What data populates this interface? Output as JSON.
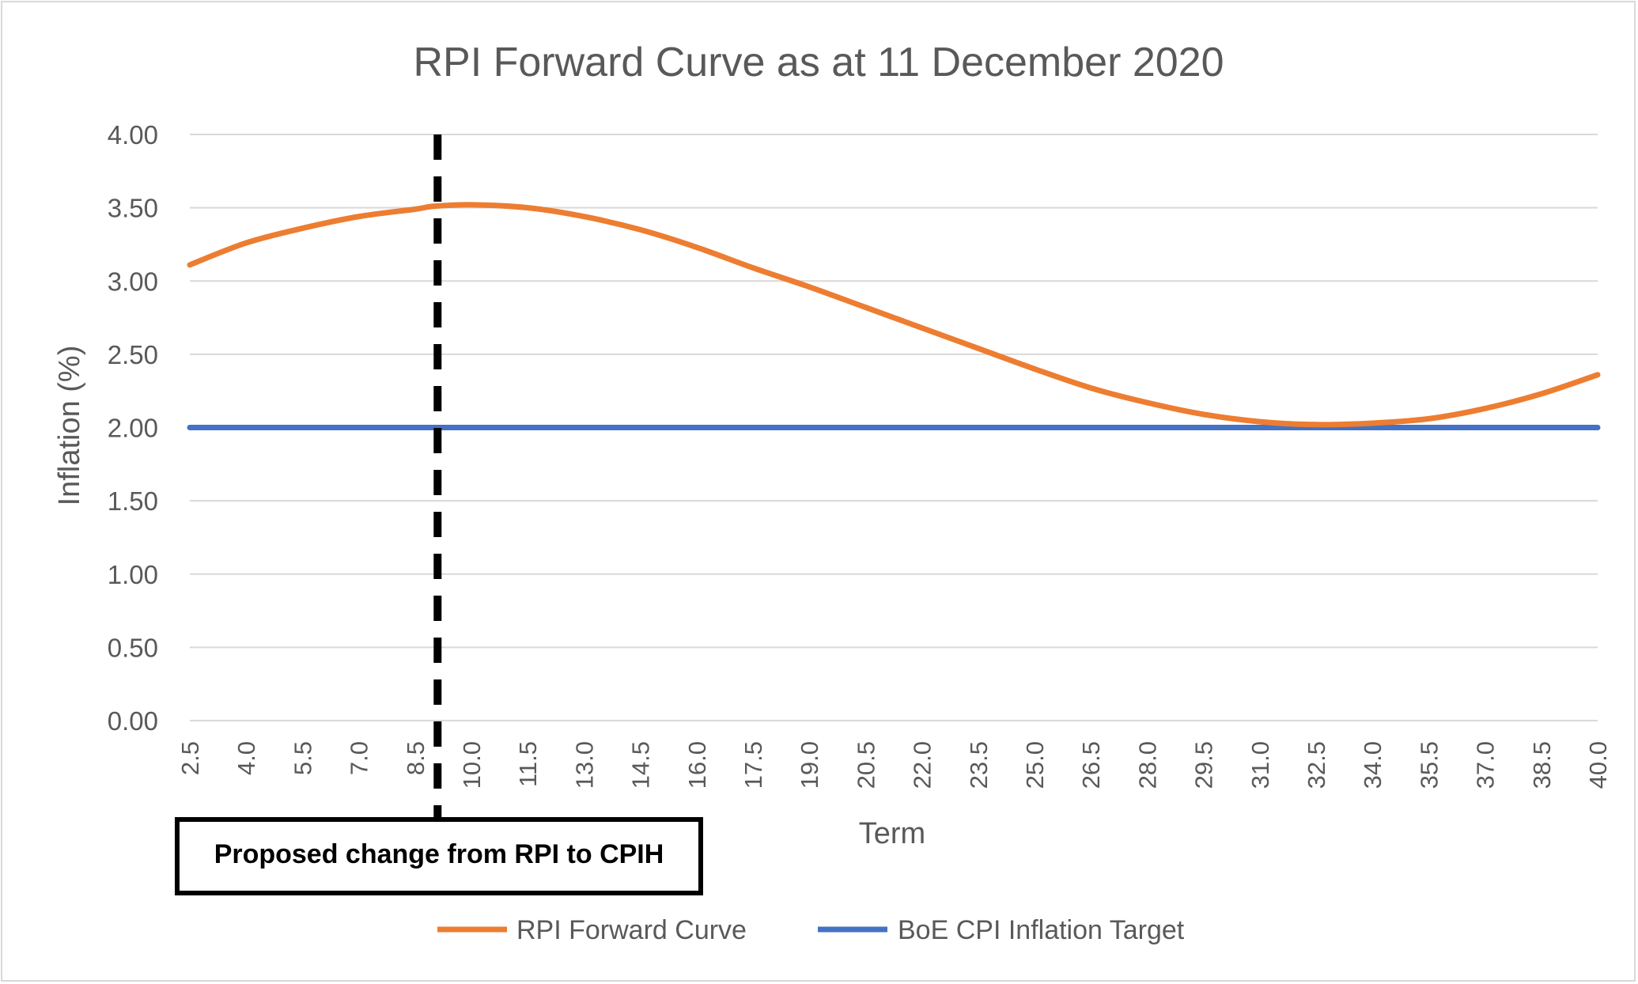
{
  "chart_data": {
    "type": "line",
    "title": "RPI Forward Curve as at 11 December 2020",
    "xlabel": "Term",
    "ylabel": "Inflation (%)",
    "ylim": [
      0,
      4
    ],
    "yticks": [
      "0.00",
      "0.50",
      "1.00",
      "1.50",
      "2.00",
      "2.50",
      "3.00",
      "3.50",
      "4.00"
    ],
    "xticks": [
      "2.5",
      "4.0",
      "5.5",
      "7.0",
      "8.5",
      "10.0",
      "11.5",
      "13.0",
      "14.5",
      "16.0",
      "17.5",
      "19.0",
      "20.5",
      "22.0",
      "23.5",
      "25.0",
      "26.5",
      "28.0",
      "29.5",
      "31.0",
      "32.5",
      "34.0",
      "35.5",
      "37.0",
      "38.5",
      "40.0"
    ],
    "xlim": [
      2.5,
      40.0
    ],
    "grid": true,
    "legend_position": "bottom",
    "series": [
      {
        "name": "RPI Forward Curve",
        "color": "#ed7d31",
        "x": [
          2.5,
          4.0,
          5.5,
          7.0,
          8.5,
          9.0,
          10.0,
          11.5,
          13.0,
          14.5,
          16.0,
          17.5,
          19.0,
          20.5,
          22.0,
          23.5,
          25.0,
          26.5,
          28.0,
          29.5,
          31.0,
          32.5,
          34.0,
          35.5,
          37.0,
          38.5,
          40.0
        ],
        "y": [
          3.11,
          3.26,
          3.36,
          3.44,
          3.49,
          3.51,
          3.52,
          3.5,
          3.44,
          3.35,
          3.23,
          3.09,
          2.96,
          2.82,
          2.68,
          2.54,
          2.4,
          2.27,
          2.17,
          2.09,
          2.04,
          2.02,
          2.03,
          2.06,
          2.13,
          2.23,
          2.36
        ]
      },
      {
        "name": "BoE CPI Inflation Target",
        "color": "#4472c4",
        "x": [
          2.5,
          40.0
        ],
        "y": [
          2.0,
          2.0
        ]
      }
    ],
    "annotation": {
      "label": "Proposed change from RPI to CPIH",
      "x": 9.1
    }
  }
}
